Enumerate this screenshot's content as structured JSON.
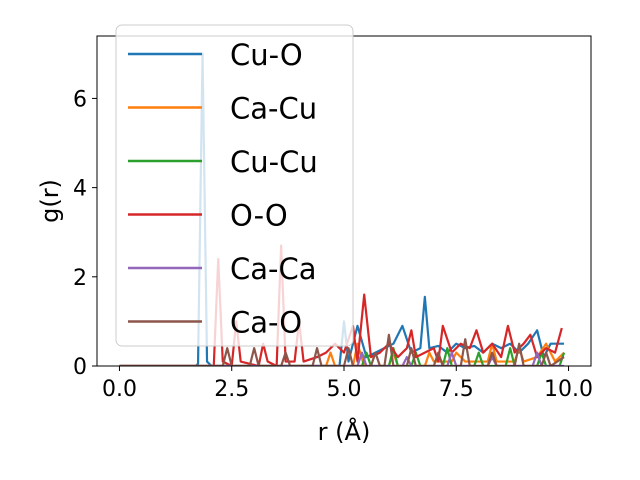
{
  "chart_data": {
    "type": "line",
    "title": "",
    "xlabel": "r (Å)",
    "ylabel": "g(r)",
    "xlim": [
      -0.5,
      10.5
    ],
    "ylim": [
      0,
      7.4
    ],
    "x_ticks": [
      0.0,
      2.5,
      5.0,
      7.5,
      10.0
    ],
    "x_tick_labels": [
      "0.0",
      "2.5",
      "5.0",
      "7.5",
      "10.0"
    ],
    "y_ticks": [
      0,
      2,
      4,
      6
    ],
    "y_tick_labels": [
      "0",
      "2",
      "4",
      "6"
    ],
    "legend_position": "upper-left",
    "series": [
      {
        "name": "Cu-O",
        "color": "#1f77b4",
        "points": [
          [
            0,
            0
          ],
          [
            1.7,
            0
          ],
          [
            1.75,
            0.05
          ],
          [
            1.85,
            7.0
          ],
          [
            1.95,
            0.1
          ],
          [
            2.05,
            0
          ],
          [
            4.9,
            0
          ],
          [
            5.0,
            1.0
          ],
          [
            5.1,
            0.1
          ],
          [
            5.3,
            0.9
          ],
          [
            5.5,
            0.2
          ],
          [
            5.7,
            0.3
          ],
          [
            5.9,
            0.4
          ],
          [
            6.1,
            0.5
          ],
          [
            6.3,
            0.9
          ],
          [
            6.5,
            0.3
          ],
          [
            6.7,
            0.4
          ],
          [
            6.8,
            1.55
          ],
          [
            6.9,
            0.4
          ],
          [
            7.1,
            0.45
          ],
          [
            7.3,
            0.3
          ],
          [
            7.5,
            0.5
          ],
          [
            7.7,
            0.4
          ],
          [
            7.9,
            0.45
          ],
          [
            8.1,
            0.3
          ],
          [
            8.3,
            0.5
          ],
          [
            8.5,
            0.4
          ],
          [
            8.7,
            0.5
          ],
          [
            8.9,
            0.3
          ],
          [
            9.1,
            0.5
          ],
          [
            9.3,
            0.8
          ],
          [
            9.45,
            0.2
          ],
          [
            9.6,
            0.5
          ],
          [
            9.8,
            0.5
          ],
          [
            9.9,
            0.5
          ]
        ]
      },
      {
        "name": "Ca-Cu",
        "color": "#ff7f0e",
        "points": [
          [
            0,
            0
          ],
          [
            4.6,
            0
          ],
          [
            4.7,
            0.3
          ],
          [
            4.8,
            0
          ],
          [
            5.2,
            0
          ],
          [
            5.3,
            0.5
          ],
          [
            5.45,
            0
          ],
          [
            6.0,
            0
          ],
          [
            6.1,
            0.3
          ],
          [
            6.2,
            0
          ],
          [
            6.8,
            0
          ],
          [
            6.9,
            0.3
          ],
          [
            7.0,
            0.1
          ],
          [
            7.4,
            0.1
          ],
          [
            7.5,
            0.3
          ],
          [
            7.7,
            0.1
          ],
          [
            8.2,
            0.1
          ],
          [
            8.3,
            0.5
          ],
          [
            8.4,
            0.1
          ],
          [
            8.8,
            0.1
          ],
          [
            8.9,
            0.4
          ],
          [
            9.0,
            0.1
          ],
          [
            9.3,
            0.2
          ],
          [
            9.5,
            0.5
          ],
          [
            9.7,
            0.1
          ],
          [
            9.9,
            0.3
          ]
        ]
      },
      {
        "name": "Cu-Cu",
        "color": "#2ca02c",
        "points": [
          [
            0,
            0
          ],
          [
            5.4,
            0
          ],
          [
            5.5,
            0.3
          ],
          [
            5.6,
            0
          ],
          [
            6.0,
            0
          ],
          [
            6.1,
            0.4
          ],
          [
            6.2,
            0
          ],
          [
            6.5,
            0
          ],
          [
            6.6,
            0.3
          ],
          [
            6.7,
            0
          ],
          [
            7.2,
            0
          ],
          [
            7.3,
            0.4
          ],
          [
            7.4,
            0
          ],
          [
            7.9,
            0
          ],
          [
            8.0,
            0.3
          ],
          [
            8.1,
            0
          ],
          [
            8.6,
            0
          ],
          [
            8.7,
            0.4
          ],
          [
            8.8,
            0
          ],
          [
            9.3,
            0
          ],
          [
            9.4,
            0.3
          ],
          [
            9.5,
            0
          ],
          [
            9.8,
            0
          ],
          [
            9.9,
            0.3
          ]
        ]
      },
      {
        "name": "O-O",
        "color": "#d62728",
        "points": [
          [
            0,
            0
          ],
          [
            2.1,
            0
          ],
          [
            2.2,
            2.4
          ],
          [
            2.3,
            0.1
          ],
          [
            2.5,
            0
          ],
          [
            2.6,
            1.0
          ],
          [
            2.7,
            0.1
          ],
          [
            3.1,
            0
          ],
          [
            3.2,
            0.5
          ],
          [
            3.3,
            0.1
          ],
          [
            3.5,
            0
          ],
          [
            3.6,
            2.7
          ],
          [
            3.7,
            0.1
          ],
          [
            3.9,
            0.1
          ],
          [
            4.0,
            1.0
          ],
          [
            4.1,
            0.1
          ],
          [
            4.4,
            0.2
          ],
          [
            4.6,
            0.3
          ],
          [
            4.8,
            0.5
          ],
          [
            5.0,
            0.3
          ],
          [
            5.2,
            0.9
          ],
          [
            5.3,
            0.1
          ],
          [
            5.45,
            1.6
          ],
          [
            5.6,
            0.2
          ],
          [
            5.8,
            0.3
          ],
          [
            6.0,
            0.5
          ],
          [
            6.2,
            0.2
          ],
          [
            6.4,
            0.4
          ],
          [
            6.5,
            0.8
          ],
          [
            6.6,
            0.2
          ],
          [
            6.8,
            0.3
          ],
          [
            7.0,
            0.4
          ],
          [
            7.1,
            0.1
          ],
          [
            7.2,
            0.9
          ],
          [
            7.4,
            0.3
          ],
          [
            7.6,
            0.5
          ],
          [
            7.8,
            0.4
          ],
          [
            7.95,
            0.8
          ],
          [
            8.1,
            0.3
          ],
          [
            8.3,
            0.5
          ],
          [
            8.5,
            0.2
          ],
          [
            8.65,
            0.9
          ],
          [
            8.8,
            0.3
          ],
          [
            9.0,
            0.5
          ],
          [
            9.15,
            0.7
          ],
          [
            9.3,
            0.2
          ],
          [
            9.5,
            0.4
          ],
          [
            9.7,
            0.3
          ],
          [
            9.85,
            0.85
          ]
        ]
      },
      {
        "name": "Ca-Ca",
        "color": "#9467bd",
        "points": [
          [
            0,
            0
          ],
          [
            5.3,
            0
          ],
          [
            5.4,
            0.3
          ],
          [
            5.5,
            0
          ],
          [
            6.3,
            0
          ],
          [
            6.4,
            0.2
          ],
          [
            6.5,
            0
          ],
          [
            7.3,
            0
          ],
          [
            7.4,
            0.3
          ],
          [
            7.5,
            0
          ],
          [
            8.2,
            0
          ],
          [
            8.3,
            0.2
          ],
          [
            8.4,
            0
          ],
          [
            9.2,
            0
          ],
          [
            9.3,
            0.3
          ],
          [
            9.4,
            0
          ],
          [
            9.9,
            0
          ]
        ]
      },
      {
        "name": "Ca-O",
        "color": "#8c564b",
        "points": [
          [
            0,
            0
          ],
          [
            2.3,
            0
          ],
          [
            2.4,
            0.4
          ],
          [
            2.5,
            0
          ],
          [
            2.9,
            0
          ],
          [
            3.0,
            0.4
          ],
          [
            3.1,
            0
          ],
          [
            3.6,
            0
          ],
          [
            3.7,
            0.3
          ],
          [
            3.8,
            0
          ],
          [
            4.3,
            0
          ],
          [
            4.4,
            0.4
          ],
          [
            4.5,
            0
          ],
          [
            5.0,
            0
          ],
          [
            5.1,
            0.4
          ],
          [
            5.2,
            0
          ],
          [
            5.6,
            0
          ],
          [
            5.7,
            0.3
          ],
          [
            5.8,
            0
          ],
          [
            5.9,
            0
          ],
          [
            6.0,
            0.7
          ],
          [
            6.1,
            0
          ],
          [
            6.4,
            0
          ],
          [
            6.5,
            0.4
          ],
          [
            6.6,
            0
          ],
          [
            7.0,
            0
          ],
          [
            7.1,
            0.3
          ],
          [
            7.2,
            0
          ],
          [
            7.6,
            0
          ],
          [
            7.7,
            0.6
          ],
          [
            7.8,
            0
          ],
          [
            8.2,
            0
          ],
          [
            8.3,
            0.3
          ],
          [
            8.4,
            0
          ],
          [
            8.8,
            0
          ],
          [
            8.9,
            0.5
          ],
          [
            9.0,
            0
          ],
          [
            9.4,
            0
          ],
          [
            9.5,
            0.3
          ],
          [
            9.6,
            0
          ],
          [
            9.9,
            0.2
          ]
        ]
      }
    ]
  }
}
